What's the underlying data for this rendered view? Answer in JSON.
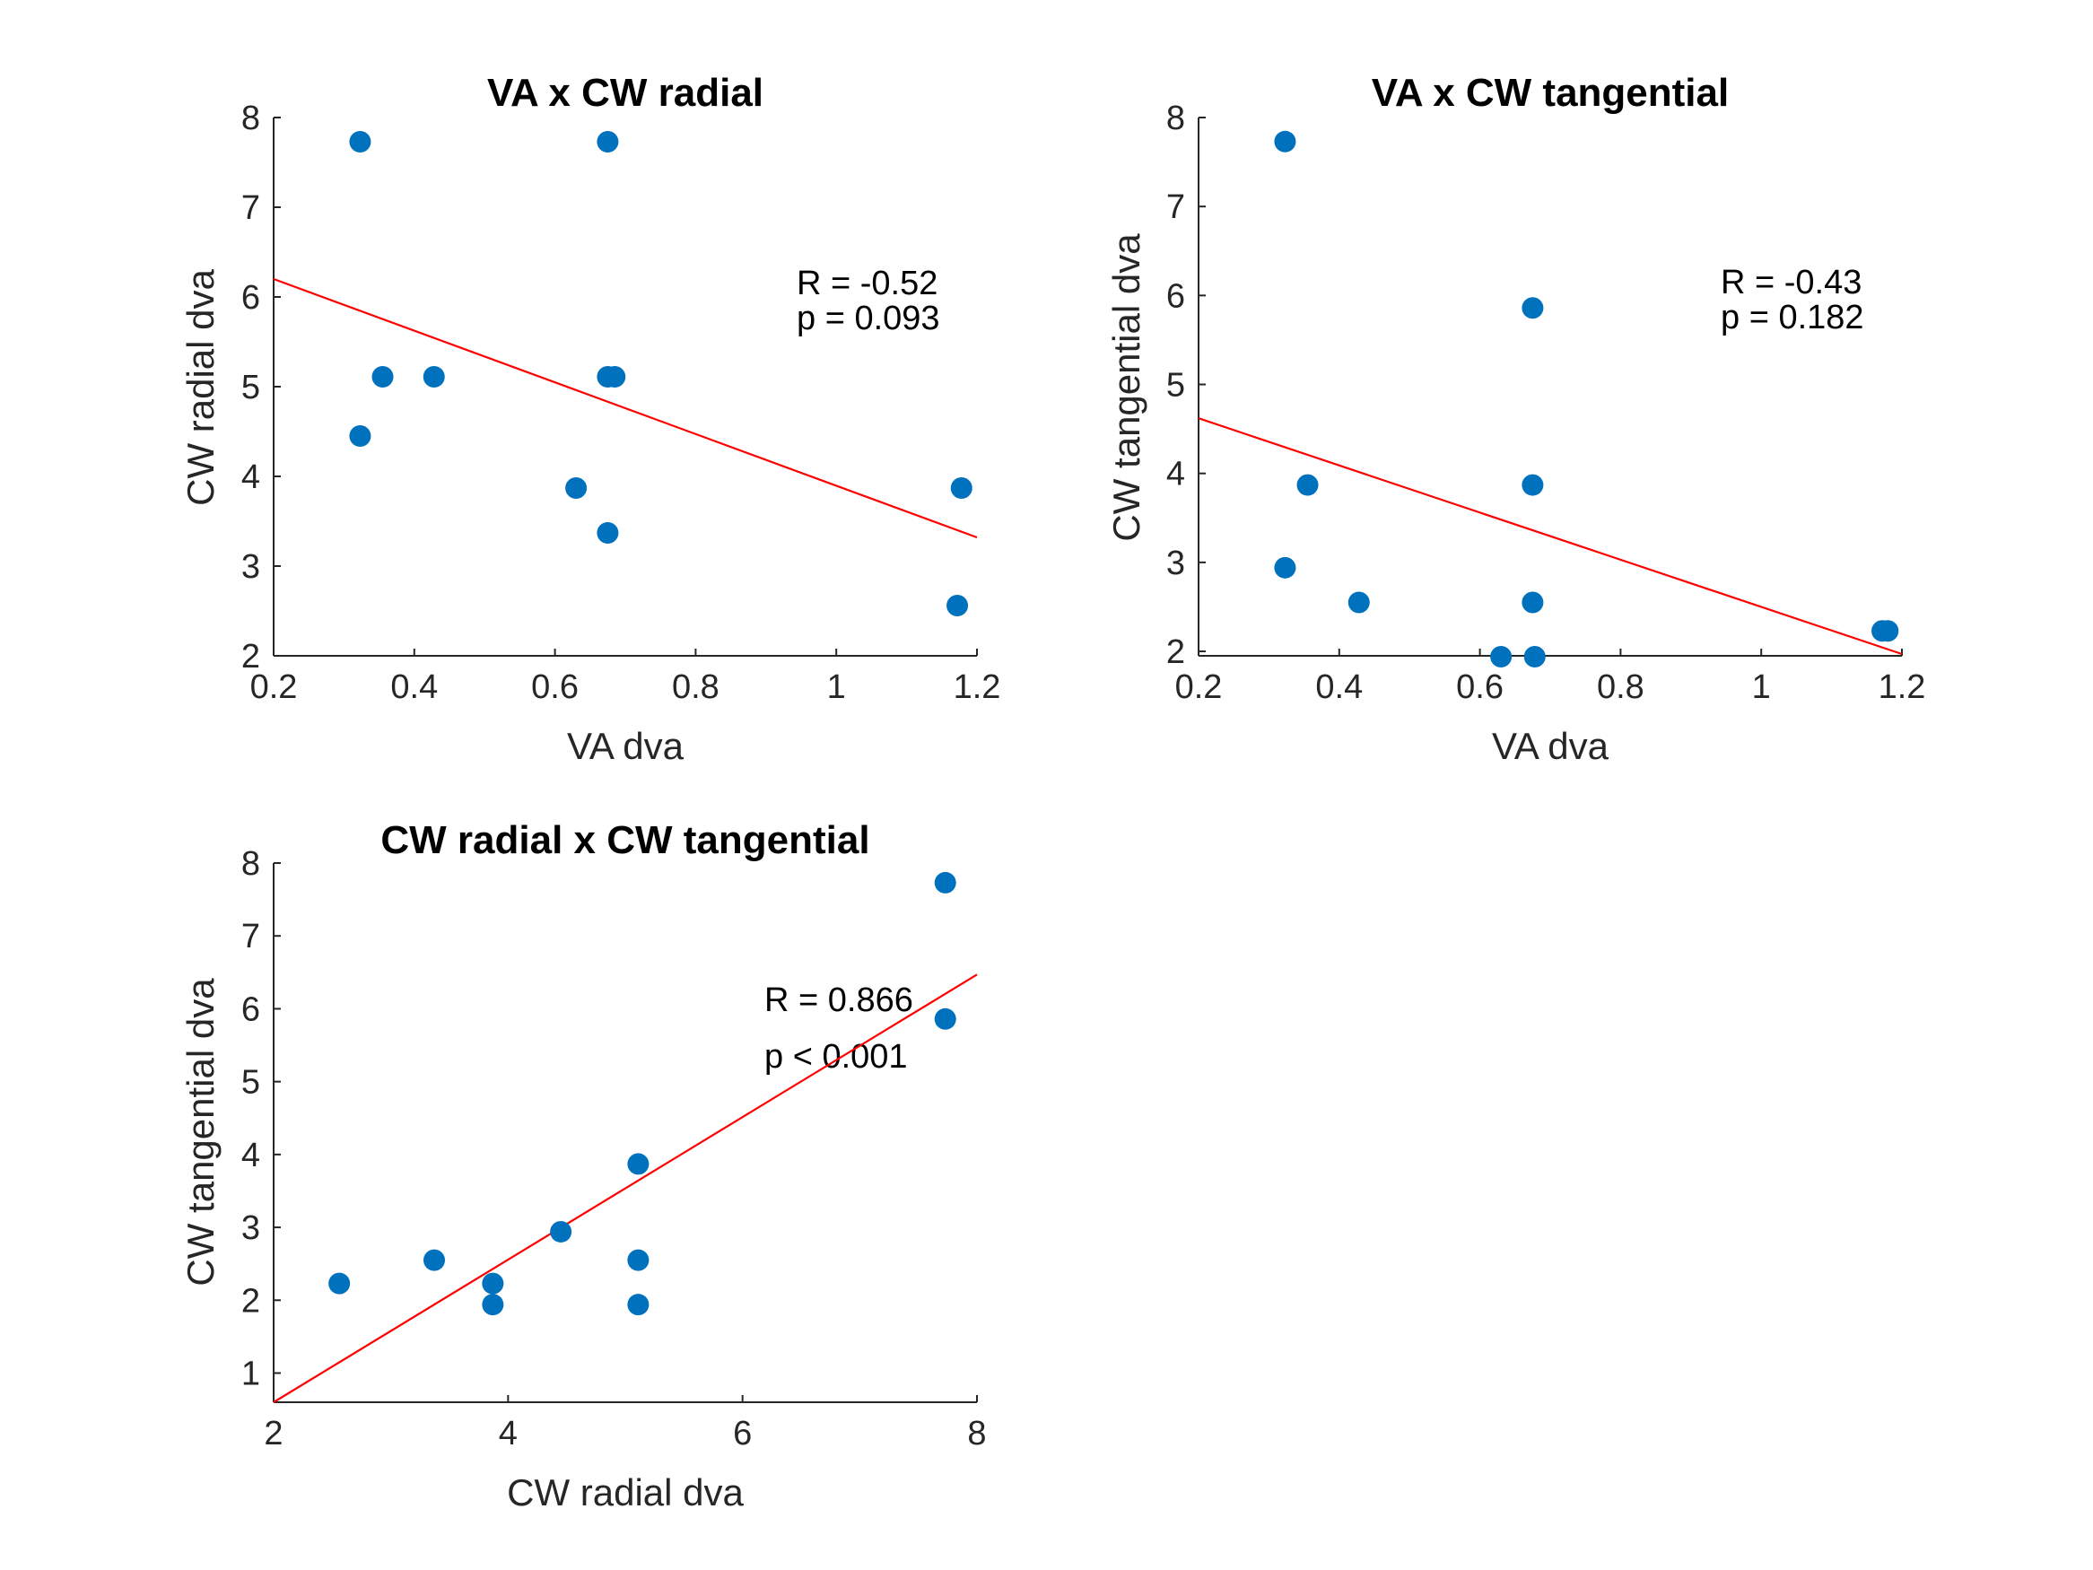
{
  "chart_data": [
    {
      "type": "scatter",
      "title": "VA x CW radial",
      "xlabel": "VA dva",
      "ylabel": "CW radial dva",
      "xlim": [
        0.2,
        1.2
      ],
      "ylim": [
        2,
        8
      ],
      "xticks": [
        "0.2",
        "0.4",
        "0.6",
        "0.8",
        "1",
        "1.2"
      ],
      "yticks": [
        "2",
        "3",
        "4",
        "5",
        "6",
        "7",
        "8"
      ],
      "grid": false,
      "marker_color": "#0072BD",
      "fit_color": "#FF0000",
      "points": [
        {
          "x": 0.323,
          "y": 7.73
        },
        {
          "x": 0.323,
          "y": 4.45
        },
        {
          "x": 0.355,
          "y": 5.11
        },
        {
          "x": 0.428,
          "y": 5.11
        },
        {
          "x": 0.63,
          "y": 3.87
        },
        {
          "x": 0.675,
          "y": 7.73
        },
        {
          "x": 0.675,
          "y": 5.11
        },
        {
          "x": 0.685,
          "y": 5.11
        },
        {
          "x": 0.675,
          "y": 3.37
        },
        {
          "x": 1.172,
          "y": 2.56
        },
        {
          "x": 1.178,
          "y": 3.87
        }
      ],
      "fit_line": {
        "x": [
          0.2,
          1.2
        ],
        "y": [
          6.2,
          3.32
        ]
      },
      "annotations": [
        "R = -0.52",
        "p = 0.093"
      ]
    },
    {
      "type": "scatter",
      "title": "VA x CW tangential",
      "xlabel": "VA dva",
      "ylabel": "CW tangential dva",
      "xlim": [
        0.2,
        1.2
      ],
      "ylim": [
        1.95,
        8
      ],
      "xticks": [
        "0.2",
        "0.4",
        "0.6",
        "0.8",
        "1",
        "1.2"
      ],
      "yticks": [
        "2",
        "3",
        "4",
        "5",
        "6",
        "7",
        "8"
      ],
      "grid": false,
      "marker_color": "#0072BD",
      "fit_color": "#FF0000",
      "points": [
        {
          "x": 0.323,
          "y": 7.73
        },
        {
          "x": 0.323,
          "y": 2.94
        },
        {
          "x": 0.355,
          "y": 3.87
        },
        {
          "x": 0.428,
          "y": 2.55
        },
        {
          "x": 0.63,
          "y": 1.94
        },
        {
          "x": 0.675,
          "y": 5.86
        },
        {
          "x": 0.675,
          "y": 3.87
        },
        {
          "x": 0.675,
          "y": 2.55
        },
        {
          "x": 0.678,
          "y": 1.94
        },
        {
          "x": 1.172,
          "y": 2.23
        },
        {
          "x": 1.18,
          "y": 2.23
        }
      ],
      "fit_line": {
        "x": [
          0.2,
          1.2
        ],
        "y": [
          4.62,
          1.97
        ]
      },
      "annotations": [
        "R = -0.43",
        "p = 0.182"
      ]
    },
    {
      "type": "scatter",
      "title": "CW radial x CW tangential",
      "xlabel": "CW radial dva",
      "ylabel": "CW tangential dva",
      "xlim": [
        2,
        8
      ],
      "ylim": [
        0.6,
        8
      ],
      "xticks": [
        "2",
        "4",
        "6",
        "8"
      ],
      "yticks": [
        "1",
        "2",
        "3",
        "4",
        "5",
        "6",
        "7",
        "8"
      ],
      "grid": false,
      "marker_color": "#0072BD",
      "fit_color": "#FF0000",
      "points": [
        {
          "x": 2.56,
          "y": 2.23
        },
        {
          "x": 3.37,
          "y": 2.55
        },
        {
          "x": 3.87,
          "y": 2.23
        },
        {
          "x": 3.87,
          "y": 1.94
        },
        {
          "x": 4.45,
          "y": 2.94
        },
        {
          "x": 5.11,
          "y": 3.87
        },
        {
          "x": 5.11,
          "y": 2.55
        },
        {
          "x": 5.11,
          "y": 1.94
        },
        {
          "x": 7.73,
          "y": 7.73
        },
        {
          "x": 7.73,
          "y": 5.86
        }
      ],
      "fit_line": {
        "x": [
          2,
          8
        ],
        "y": [
          0.6,
          6.47
        ]
      },
      "annotations": [
        "R = 0.866",
        "p < 0.001"
      ]
    }
  ]
}
